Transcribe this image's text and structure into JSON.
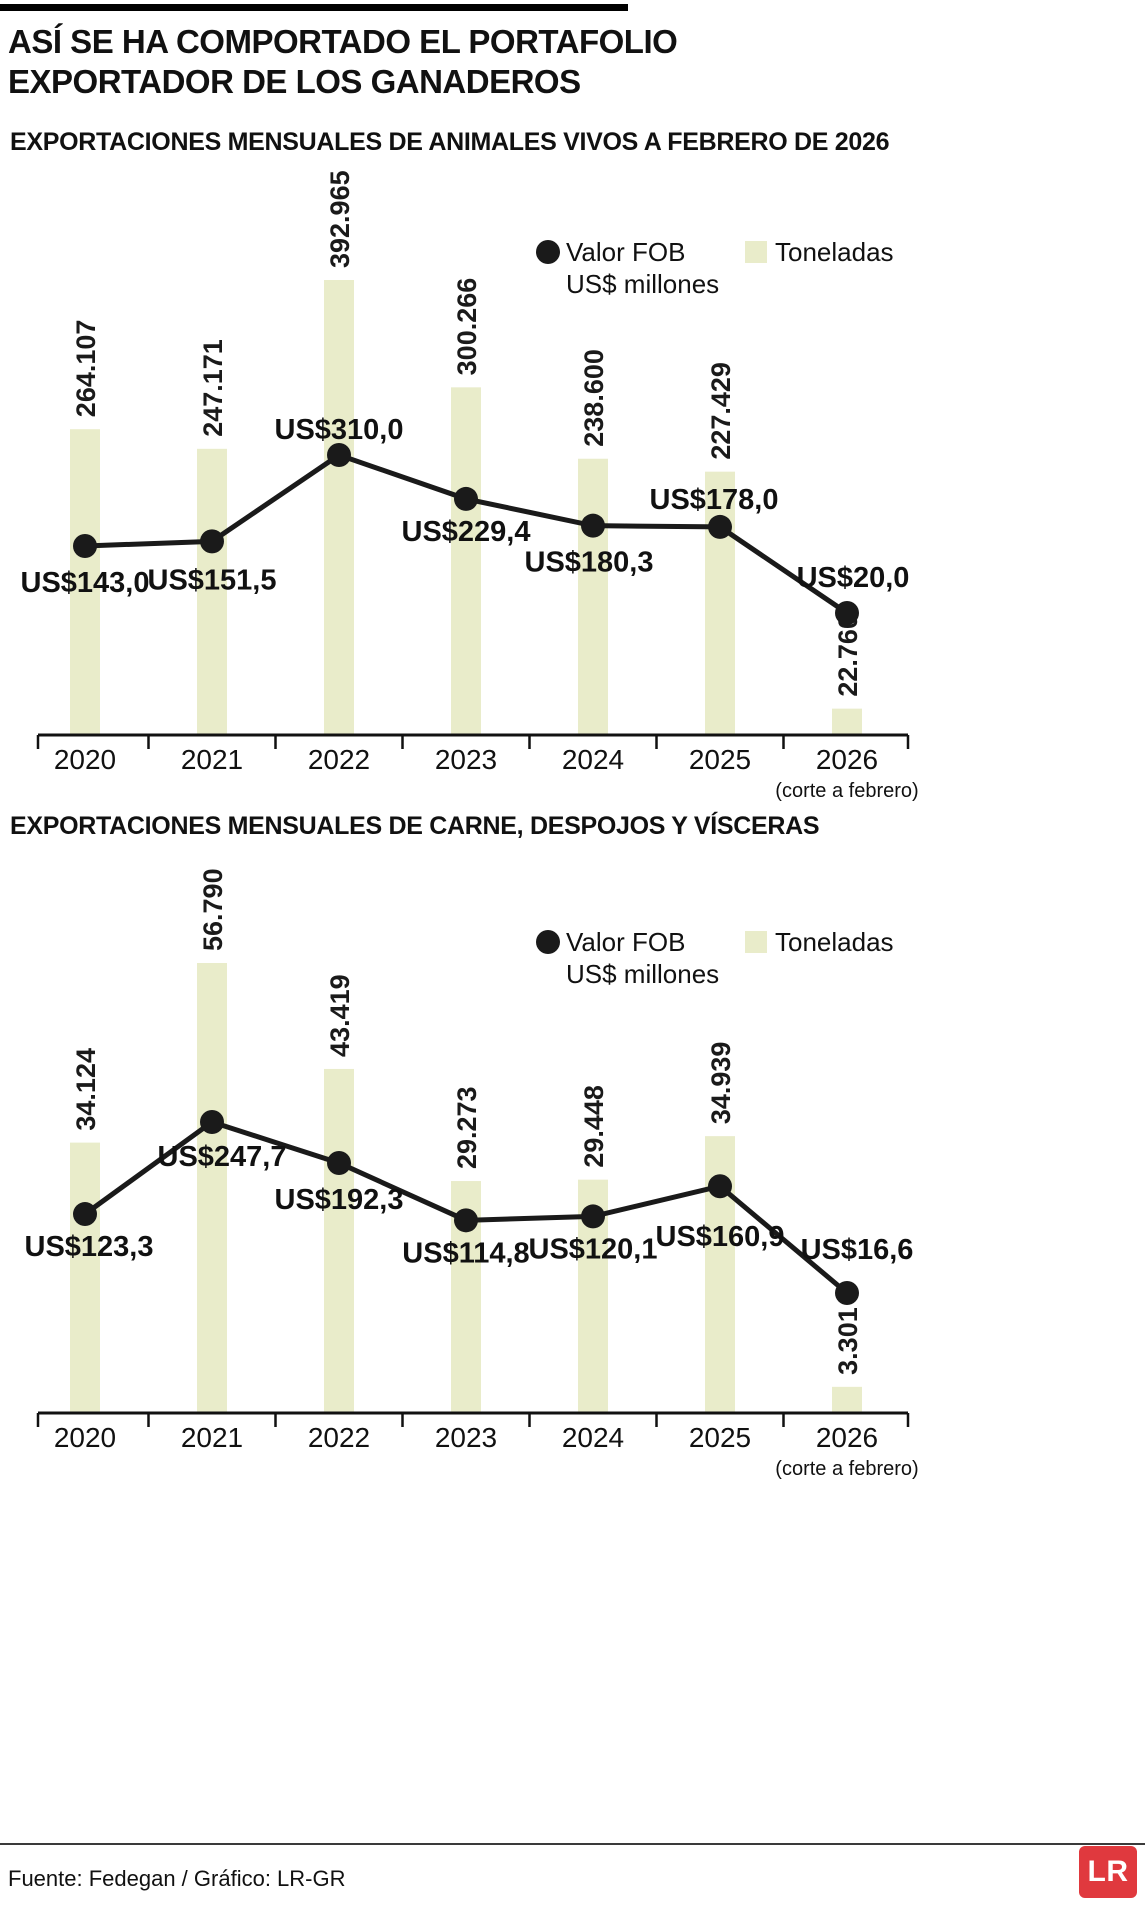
{
  "header": {
    "title": "ASÍ SE HA COMPORTADO EL PORTAFOLIO EXPORTADOR DE LOS GANADEROS"
  },
  "legend": {
    "fob_line1": "Valor FOB",
    "fob_line2": "US$ millones",
    "tons": "Toneladas"
  },
  "colors": {
    "bar": "#e9ecca",
    "line": "#1a1a1a",
    "logo_red": "#e0393e"
  },
  "footer": {
    "source": "Fuente: Fedegan / Gráfico: LR-GR",
    "logo": "LR"
  },
  "chart_data": [
    {
      "type": "combo",
      "title": "EXPORTACIONES MENSUALES DE ANIMALES VIVOS A FEBRERO DE 2026",
      "categories": [
        "2020",
        "2021",
        "2022",
        "2023",
        "2024",
        "2025",
        "2026"
      ],
      "x_note": "(corte a febrero)",
      "legend_position": "top-right",
      "series": [
        {
          "name": "Toneladas",
          "type": "bar",
          "values": [
            264107,
            247171,
            392965,
            300266,
            238600,
            227429,
            22760
          ],
          "labels": [
            "264.107",
            "247.171",
            "392.965",
            "300.266",
            "238.600",
            "227.429",
            "22.760"
          ]
        },
        {
          "name": "Valor FOB US$ millones",
          "type": "line",
          "values": [
            143.0,
            151.5,
            310.0,
            229.4,
            180.3,
            178.0,
            20.0
          ],
          "labels": [
            "US$143,0",
            "US$151,5",
            "US$310,0",
            "US$229,4",
            "US$180,3",
            "US$178,0",
            "US$20,0"
          ]
        }
      ]
    },
    {
      "type": "combo",
      "title": "EXPORTACIONES MENSUALES DE CARNE, DESPOJOS Y VÍSCERAS",
      "categories": [
        "2020",
        "2021",
        "2022",
        "2023",
        "2024",
        "2025",
        "2026"
      ],
      "x_note": "(corte a febrero)",
      "legend_position": "top-right",
      "series": [
        {
          "name": "Toneladas",
          "type": "bar",
          "values": [
            34124,
            56790,
            43419,
            29273,
            29448,
            34939,
            3301
          ],
          "labels": [
            "34.124",
            "56.790",
            "43.419",
            "29.273",
            "29.448",
            "34.939",
            "3.301"
          ]
        },
        {
          "name": "Valor FOB US$ millones",
          "type": "line",
          "values": [
            123.3,
            247.7,
            192.3,
            114.8,
            120.1,
            160.9,
            16.6
          ],
          "labels": [
            "US$123,3",
            "US$247,7",
            "US$192,3",
            "US$114,8",
            "US$120,1",
            "US$160,9",
            "US$16,6"
          ]
        }
      ]
    }
  ]
}
